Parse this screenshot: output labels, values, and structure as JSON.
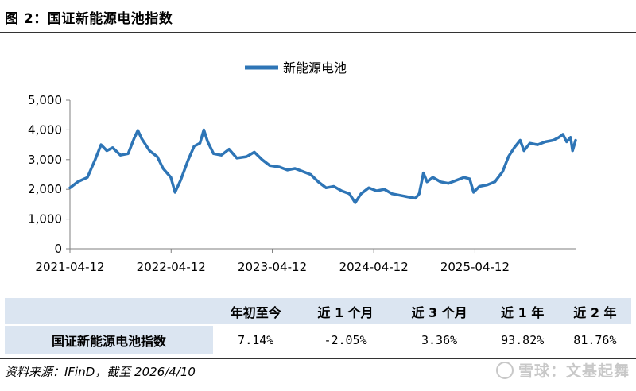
{
  "figure_title": "图 2：国证新能源电池指数",
  "chart_data": {
    "type": "line",
    "series": [
      {
        "name": "新能源电池",
        "color": "#2e75b6",
        "points": [
          [
            "2021-04-12",
            2050
          ],
          [
            "2021-05-10",
            2250
          ],
          [
            "2021-06-14",
            2400
          ],
          [
            "2021-07-12",
            3000
          ],
          [
            "2021-08-02",
            3500
          ],
          [
            "2021-08-23",
            3300
          ],
          [
            "2021-09-13",
            3400
          ],
          [
            "2021-10-11",
            3150
          ],
          [
            "2021-11-08",
            3200
          ],
          [
            "2021-11-29",
            3700
          ],
          [
            "2021-12-13",
            3980
          ],
          [
            "2021-12-27",
            3700
          ],
          [
            "2022-01-24",
            3300
          ],
          [
            "2022-02-21",
            3100
          ],
          [
            "2022-03-14",
            2700
          ],
          [
            "2022-04-11",
            2400
          ],
          [
            "2022-04-26",
            1900
          ],
          [
            "2022-05-16",
            2300
          ],
          [
            "2022-06-13",
            3000
          ],
          [
            "2022-07-04",
            3450
          ],
          [
            "2022-07-25",
            3550
          ],
          [
            "2022-08-08",
            4000
          ],
          [
            "2022-08-22",
            3600
          ],
          [
            "2022-09-12",
            3200
          ],
          [
            "2022-10-10",
            3150
          ],
          [
            "2022-11-07",
            3350
          ],
          [
            "2022-12-05",
            3050
          ],
          [
            "2023-01-09",
            3100
          ],
          [
            "2023-02-06",
            3250
          ],
          [
            "2023-03-06",
            3000
          ],
          [
            "2023-04-03",
            2800
          ],
          [
            "2023-05-08",
            2750
          ],
          [
            "2023-06-05",
            2650
          ],
          [
            "2023-07-03",
            2700
          ],
          [
            "2023-07-31",
            2600
          ],
          [
            "2023-08-28",
            2500
          ],
          [
            "2023-09-25",
            2250
          ],
          [
            "2023-10-23",
            2050
          ],
          [
            "2023-11-20",
            2100
          ],
          [
            "2023-12-18",
            1950
          ],
          [
            "2024-01-15",
            1850
          ],
          [
            "2024-02-05",
            1550
          ],
          [
            "2024-02-26",
            1850
          ],
          [
            "2024-03-25",
            2050
          ],
          [
            "2024-04-22",
            1950
          ],
          [
            "2024-05-20",
            2000
          ],
          [
            "2024-06-17",
            1850
          ],
          [
            "2024-07-15",
            1800
          ],
          [
            "2024-08-12",
            1750
          ],
          [
            "2024-09-09",
            1700
          ],
          [
            "2024-09-23",
            1850
          ],
          [
            "2024-10-08",
            2550
          ],
          [
            "2024-10-21",
            2250
          ],
          [
            "2024-11-11",
            2400
          ],
          [
            "2024-12-09",
            2250
          ],
          [
            "2025-01-06",
            2200
          ],
          [
            "2025-02-03",
            2300
          ],
          [
            "2025-03-03",
            2400
          ],
          [
            "2025-03-24",
            2350
          ],
          [
            "2025-04-07",
            1900
          ],
          [
            "2025-04-28",
            2100
          ],
          [
            "2025-05-26",
            2150
          ],
          [
            "2025-06-23",
            2250
          ],
          [
            "2025-07-21",
            2600
          ],
          [
            "2025-08-11",
            3100
          ],
          [
            "2025-09-01",
            3400
          ],
          [
            "2025-09-22",
            3650
          ],
          [
            "2025-10-06",
            3300
          ],
          [
            "2025-10-27",
            3550
          ],
          [
            "2025-11-24",
            3500
          ],
          [
            "2025-12-22",
            3600
          ],
          [
            "2026-01-19",
            3650
          ],
          [
            "2026-02-09",
            3750
          ],
          [
            "2026-02-23",
            3850
          ],
          [
            "2026-03-09",
            3600
          ],
          [
            "2026-03-23",
            3750
          ],
          [
            "2026-03-30",
            3300
          ],
          [
            "2026-04-10",
            3650
          ]
        ]
      }
    ],
    "x_tick_labels": [
      "2021-04-12",
      "2022-04-12",
      "2023-04-12",
      "2024-04-12",
      "2025-04-12"
    ],
    "y_ticks": [
      0,
      1000,
      2000,
      3000,
      4000,
      5000
    ],
    "y_tick_labels": [
      "0",
      "1,000",
      "2,000",
      "3,000",
      "4,000",
      "5,000"
    ],
    "xlim": [
      "2021-04-12",
      "2026-04-10"
    ],
    "ylim": [
      0,
      5000
    ],
    "grid": false,
    "legend_position": "top-center"
  },
  "performance_table": {
    "headers": [
      "年初至今",
      "近 1 个月",
      "近 3 个月",
      "近 1 年",
      "近 2 年"
    ],
    "row_name": "国证新能源电池指数",
    "values": [
      "7.14%",
      "-2.05%",
      "3.36%",
      "93.82%",
      "81.76%"
    ]
  },
  "source_note": "资料来源：IFinD，截至 2026/4/10",
  "watermark": "雪球：文基起舞"
}
